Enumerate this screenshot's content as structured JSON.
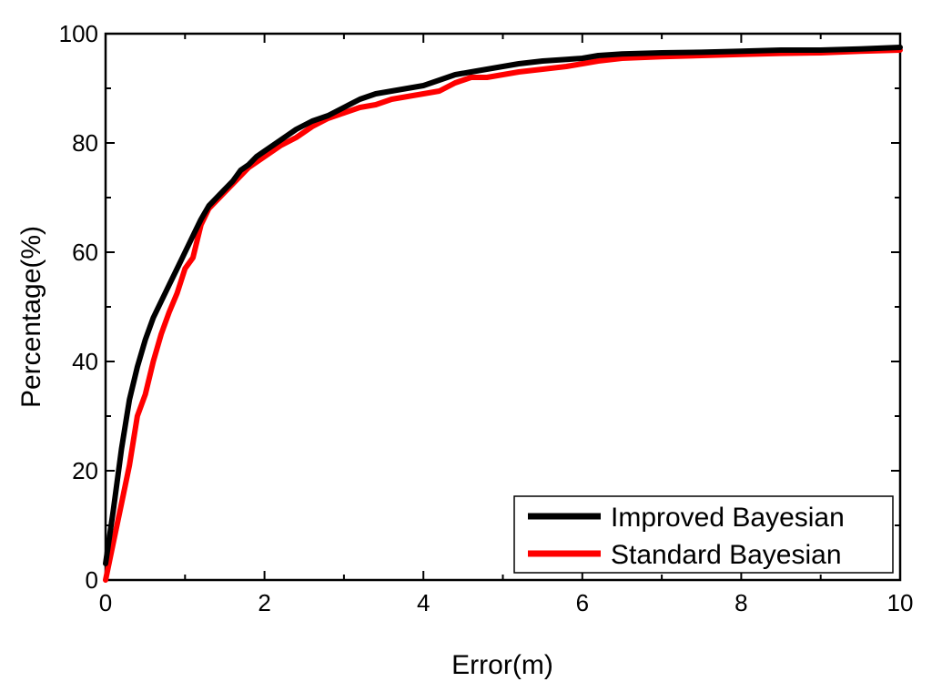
{
  "chart_data": {
    "type": "line",
    "title": "",
    "xlabel": "Error(m)",
    "ylabel": "Percentage(%)",
    "xlim": [
      0,
      10
    ],
    "ylim": [
      0,
      100
    ],
    "xticks": [
      "0",
      "2",
      "4",
      "6",
      "8",
      "10"
    ],
    "yticks": [
      "0",
      "20",
      "40",
      "60",
      "80",
      "100"
    ],
    "grid": false,
    "legend_position": "bottom-right",
    "series": [
      {
        "name": "Improved Bayesian",
        "color": "#000000",
        "x": [
          0,
          0.1,
          0.2,
          0.3,
          0.4,
          0.5,
          0.6,
          0.7,
          0.8,
          0.9,
          1.0,
          1.1,
          1.2,
          1.3,
          1.4,
          1.5,
          1.6,
          1.7,
          1.8,
          1.9,
          2.0,
          2.2,
          2.4,
          2.6,
          2.8,
          3.0,
          3.2,
          3.4,
          3.6,
          3.8,
          4.0,
          4.2,
          4.4,
          4.6,
          4.8,
          5.0,
          5.2,
          5.5,
          5.8,
          6.0,
          6.2,
          6.5,
          7.0,
          7.5,
          8.0,
          8.5,
          9.0,
          9.5,
          10.0
        ],
        "y": [
          3,
          13,
          24,
          33,
          39,
          44,
          48,
          51,
          54,
          57,
          60,
          63,
          66,
          68.5,
          70,
          71.5,
          73,
          75,
          76,
          77.5,
          78.5,
          80.5,
          82.5,
          84,
          85,
          86.5,
          88,
          89,
          89.5,
          90,
          90.5,
          91.5,
          92.5,
          93,
          93.5,
          94,
          94.5,
          95,
          95.3,
          95.5,
          96,
          96.3,
          96.5,
          96.6,
          96.8,
          97,
          97,
          97.2,
          97.5
        ]
      },
      {
        "name": "Standard Bayesian",
        "color": "#ff0000",
        "x": [
          0,
          0.1,
          0.2,
          0.3,
          0.4,
          0.5,
          0.6,
          0.7,
          0.8,
          0.9,
          1.0,
          1.1,
          1.2,
          1.3,
          1.4,
          1.5,
          1.6,
          1.7,
          1.8,
          1.9,
          2.0,
          2.2,
          2.4,
          2.6,
          2.8,
          3.0,
          3.2,
          3.4,
          3.6,
          3.8,
          4.0,
          4.2,
          4.4,
          4.6,
          4.8,
          5.0,
          5.2,
          5.5,
          5.8,
          6.0,
          6.2,
          6.5,
          7.0,
          7.5,
          8.0,
          8.5,
          9.0,
          9.5,
          10.0
        ],
        "y": [
          0,
          7,
          14,
          21,
          30,
          34,
          40,
          45,
          49,
          52.5,
          57,
          59,
          65,
          68,
          69.5,
          71,
          72.5,
          74,
          75.5,
          76.5,
          77.5,
          79.5,
          81,
          83,
          84.5,
          85.5,
          86.5,
          87,
          88,
          88.5,
          89,
          89.5,
          91,
          92,
          92,
          92.5,
          93,
          93.5,
          94,
          94.5,
          95,
          95.5,
          95.8,
          96,
          96.2,
          96.4,
          96.5,
          96.8,
          97
        ]
      }
    ]
  }
}
